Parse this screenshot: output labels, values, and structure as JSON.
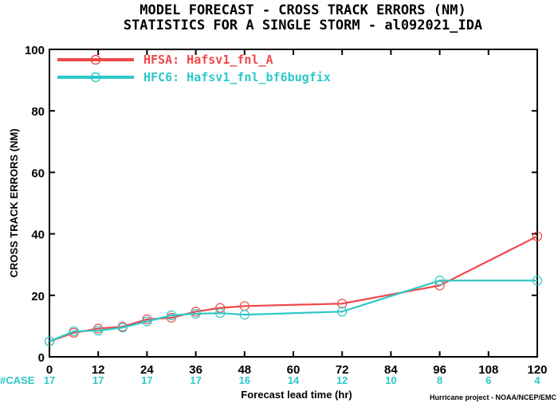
{
  "title_line1": "MODEL FORECAST - CROSS TRACK ERRORS (NM)",
  "title_line2": "STATISTICS FOR A SINGLE STORM - al092021_IDA",
  "credit": "Hurricane project - NOAA/NCEP/EMC",
  "case_label": "#CASE",
  "colors": {
    "hfsa": "#f04848",
    "hfc6": "#30c8c8",
    "case": "#30c8c8"
  },
  "chart_data": {
    "type": "line",
    "title": "MODEL FORECAST - CROSS TRACK ERRORS (NM)",
    "subtitle": "STATISTICS FOR A SINGLE STORM - al092021_IDA",
    "xlabel": "Forecast lead time (hr)",
    "ylabel": "CROSS TRACK ERRORS (NM)",
    "xlim": [
      0,
      120
    ],
    "ylim": [
      0,
      100
    ],
    "xticks": [
      "0",
      "12",
      "24",
      "36",
      "48",
      "60",
      "72",
      "84",
      "96",
      "108",
      "120"
    ],
    "yticks": [
      "0",
      "20",
      "40",
      "60",
      "80",
      "100"
    ],
    "grid": false,
    "legend_position": "top-left",
    "series": [
      {
        "name": "HFSA: Hafsv1_fnl_A",
        "color": "#f04848",
        "x": [
          0,
          6,
          12,
          18,
          24,
          30,
          36,
          42,
          48,
          72,
          96,
          120
        ],
        "y": [
          5.0,
          7.8,
          9.2,
          9.8,
          12.2,
          12.7,
          14.7,
          15.9,
          16.5,
          17.3,
          23.2,
          39.2
        ]
      },
      {
        "name": "HFC6: Hafsv1_fnl_bf6bugfix",
        "color": "#30c8c8",
        "x": [
          0,
          6,
          12,
          18,
          24,
          30,
          36,
          42,
          48,
          72,
          96,
          120
        ],
        "y": [
          5.0,
          8.3,
          8.5,
          9.5,
          11.5,
          13.5,
          14.0,
          14.2,
          13.7,
          14.7,
          24.8,
          24.8
        ]
      }
    ],
    "case_counts": {
      "x": [
        0,
        12,
        24,
        36,
        48,
        60,
        72,
        84,
        96,
        108,
        120
      ],
      "values": [
        "17",
        "17",
        "17",
        "17",
        "16",
        "14",
        "12",
        "10",
        "8",
        "6",
        "4"
      ]
    }
  }
}
